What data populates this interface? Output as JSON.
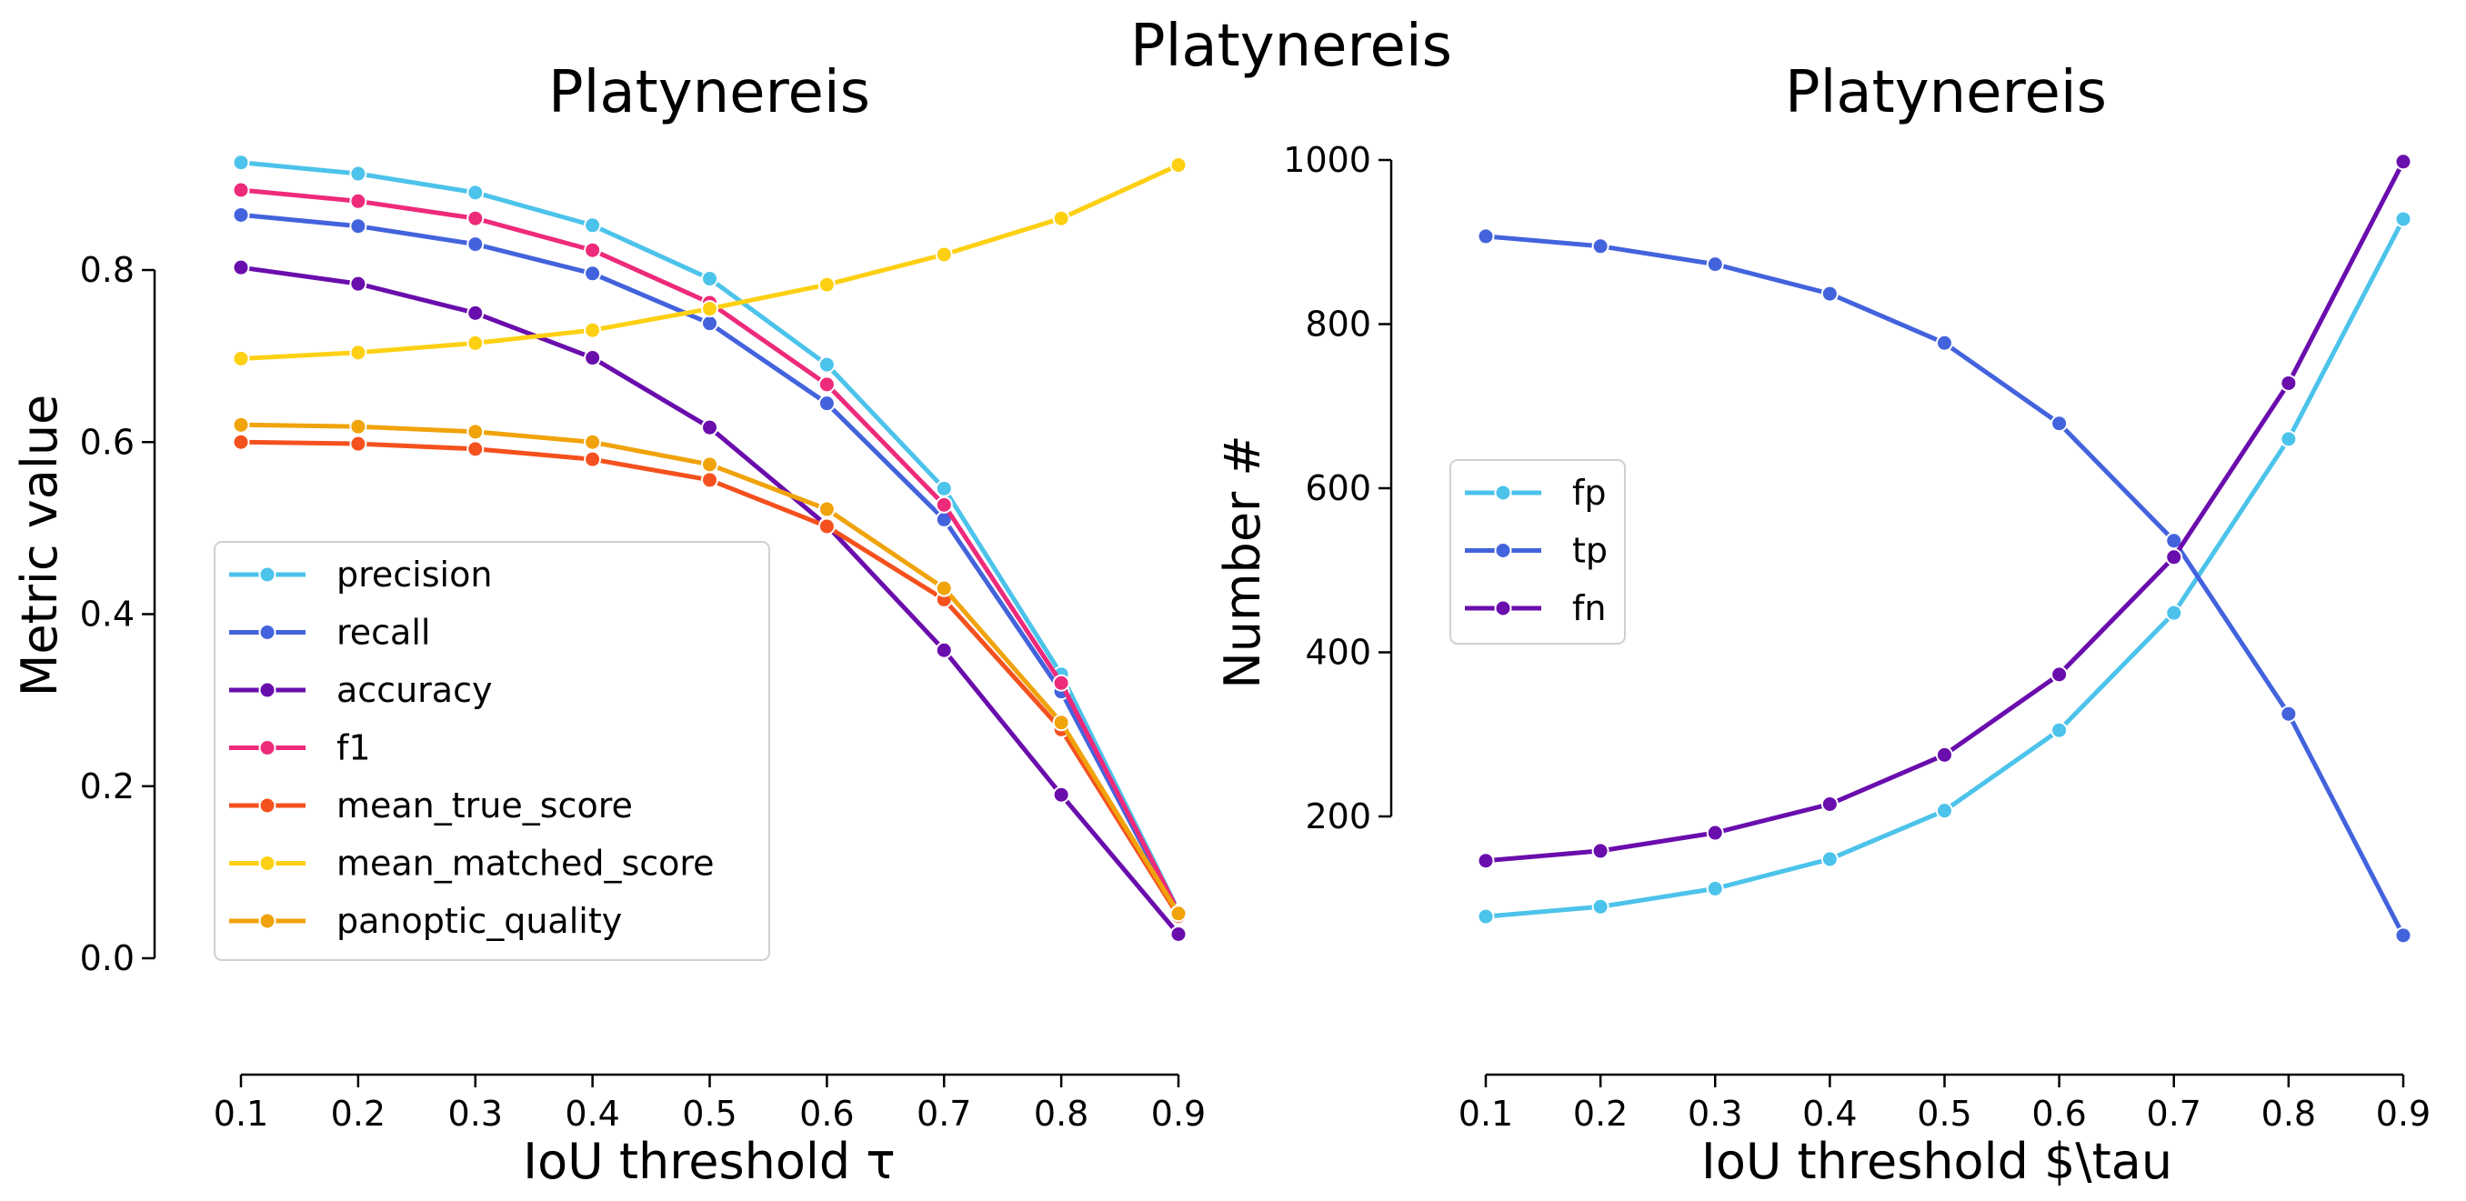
{
  "figure": {
    "suptitle": "Platynereis"
  },
  "chart_data": [
    {
      "type": "line",
      "title": "Platynereis",
      "xlabel": "IoU threshold τ",
      "ylabel": "Metric value",
      "x": [
        0.1,
        0.2,
        0.3,
        0.4,
        0.5,
        0.6,
        0.7,
        0.8,
        0.9
      ],
      "xticks": [
        "0.1",
        "0.2",
        "0.3",
        "0.4",
        "0.5",
        "0.6",
        "0.7",
        "0.8",
        "0.9"
      ],
      "yticks": [
        "0.0",
        "0.2",
        "0.4",
        "0.6",
        "0.8"
      ],
      "ytick_values": [
        0,
        0.2,
        0.4,
        0.6,
        0.8
      ],
      "ylim": [
        -0.13,
        0.95
      ],
      "xlim": [
        0.06,
        0.94
      ],
      "legend_position": "lower-left",
      "grid": false,
      "series": [
        {
          "name": "precision",
          "color": "#4cc3ea",
          "values": [
            0.925,
            0.912,
            0.89,
            0.852,
            0.79,
            0.69,
            0.546,
            0.33,
            0.055
          ]
        },
        {
          "name": "recall",
          "color": "#4363dd",
          "values": [
            0.864,
            0.851,
            0.83,
            0.796,
            0.738,
            0.645,
            0.51,
            0.31,
            0.052
          ]
        },
        {
          "name": "accuracy",
          "color": "#6a0dad",
          "values": [
            0.803,
            0.784,
            0.75,
            0.698,
            0.617,
            0.503,
            0.358,
            0.19,
            0.028
          ]
        },
        {
          "name": "f1",
          "color": "#ee2a7b",
          "values": [
            0.893,
            0.88,
            0.86,
            0.823,
            0.762,
            0.667,
            0.527,
            0.32,
            0.054
          ]
        },
        {
          "name": "mean_true_score",
          "color": "#f4511e",
          "values": [
            0.6,
            0.598,
            0.592,
            0.58,
            0.556,
            0.502,
            0.417,
            0.266,
            0.049
          ]
        },
        {
          "name": "mean_matched_score",
          "color": "#fdd013",
          "values": [
            0.697,
            0.704,
            0.715,
            0.73,
            0.755,
            0.783,
            0.818,
            0.86,
            0.922
          ]
        },
        {
          "name": "panoptic_quality",
          "color": "#f0a30a",
          "values": [
            0.62,
            0.618,
            0.612,
            0.6,
            0.574,
            0.522,
            0.43,
            0.274,
            0.052
          ]
        }
      ]
    },
    {
      "type": "line",
      "title": "Platynereis",
      "xlabel": "IoU threshold $\\tau",
      "ylabel": "Number #",
      "x": [
        0.1,
        0.2,
        0.3,
        0.4,
        0.5,
        0.6,
        0.7,
        0.8,
        0.9
      ],
      "xticks": [
        "0.1",
        "0.2",
        "0.3",
        "0.4",
        "0.5",
        "0.6",
        "0.7",
        "0.8",
        "0.9"
      ],
      "yticks": [
        "200",
        "400",
        "600",
        "800",
        "1000"
      ],
      "ytick_values": [
        200,
        400,
        600,
        800,
        1000
      ],
      "ylim": [
        -126,
        1024
      ],
      "xlim": [
        0.06,
        0.94
      ],
      "legend_position": "center-left",
      "grid": false,
      "series": [
        {
          "name": "fp",
          "color": "#4cc3ea",
          "values": [
            78,
            90,
            112,
            148,
            207,
            305,
            448,
            660,
            928
          ]
        },
        {
          "name": "tp",
          "color": "#4363dd",
          "values": [
            907,
            895,
            873,
            837,
            777,
            679,
            536,
            325,
            55
          ]
        },
        {
          "name": "fn",
          "color": "#6a0dad",
          "values": [
            146,
            158,
            180,
            215,
            275,
            373,
            516,
            728,
            998
          ]
        }
      ]
    }
  ]
}
